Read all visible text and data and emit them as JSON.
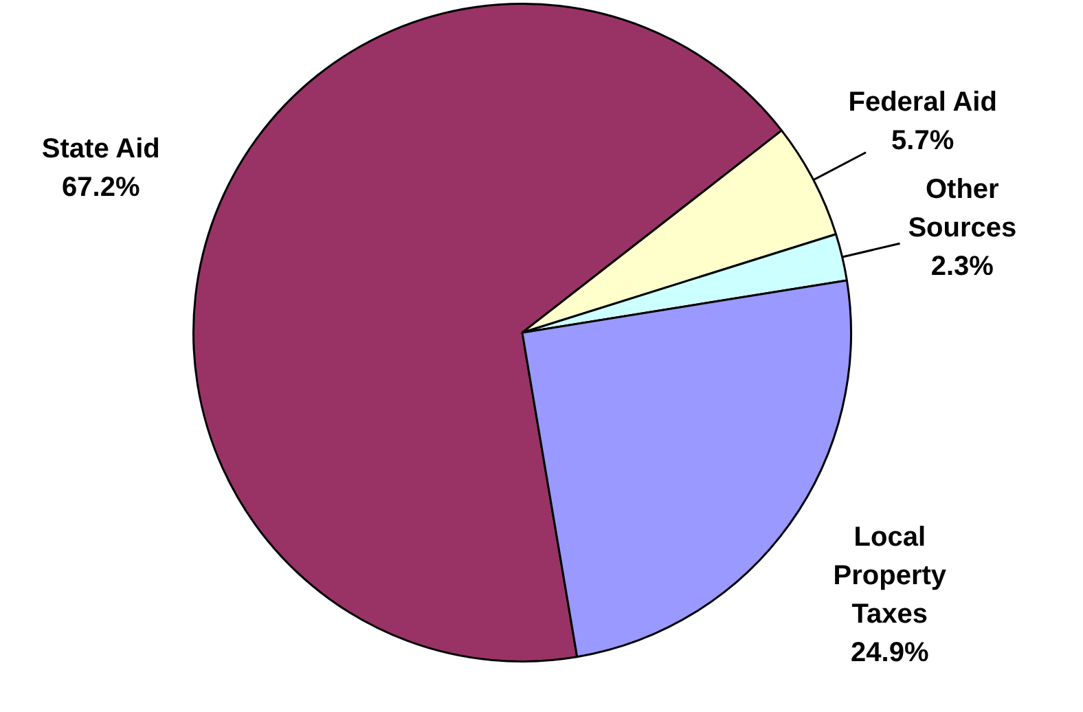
{
  "chart_data": {
    "type": "pie",
    "categories": [
      "State Aid",
      "Federal Aid",
      "Other Sources",
      "Local Property Taxes"
    ],
    "values": [
      67.2,
      5.7,
      2.3,
      24.9
    ],
    "colors": [
      "#993366",
      "#ffffcc",
      "#ccffff",
      "#9999ff"
    ],
    "value_labels": [
      "67.2%",
      "5.7%",
      "2.3%",
      "24.9%"
    ],
    "legend": false
  }
}
